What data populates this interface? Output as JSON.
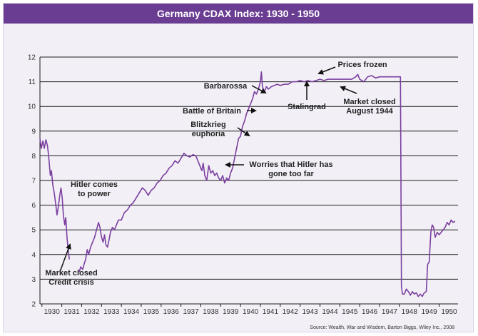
{
  "chart_data": {
    "type": "line",
    "title": "Germany CDAX Index: 1930 - 1950",
    "xlabel": "",
    "ylabel": "",
    "xlim": [
      1929.9,
      1950.95
    ],
    "ylim": [
      2,
      12
    ],
    "yticks": [
      2,
      3,
      4,
      5,
      6,
      7,
      8,
      9,
      10,
      11,
      12
    ],
    "xticks": [
      "1930",
      "1931",
      "1932",
      "1933",
      "1934",
      "1935",
      "1936",
      "1937",
      "1938",
      "1939",
      "1940",
      "1941",
      "1942",
      "1943",
      "1944",
      "1945",
      "1946",
      "1947",
      "1948",
      "1949",
      "1950"
    ],
    "grid": "horizontal",
    "color": "#7b3fa0",
    "series": [
      {
        "segments": [
          [
            [
              1929.9,
              8.7
            ],
            [
              1929.97,
              8.3
            ],
            [
              1930.05,
              8.6
            ],
            [
              1930.12,
              8.3
            ],
            [
              1930.2,
              8.65
            ],
            [
              1930.28,
              8.4
            ],
            [
              1930.35,
              7.9
            ],
            [
              1930.42,
              7.2
            ],
            [
              1930.48,
              7.4
            ],
            [
              1930.55,
              6.8
            ],
            [
              1930.62,
              6.5
            ],
            [
              1930.7,
              6.0
            ],
            [
              1930.76,
              5.6
            ],
            [
              1930.82,
              5.9
            ],
            [
              1930.9,
              6.4
            ],
            [
              1930.96,
              6.7
            ],
            [
              1931.02,
              6.3
            ],
            [
              1931.08,
              5.6
            ],
            [
              1931.15,
              5.2
            ],
            [
              1931.2,
              5.5
            ],
            [
              1931.26,
              4.7
            ],
            [
              1931.32,
              4.2
            ],
            [
              1931.38,
              3.8
            ]
          ],
          [
            [
              1931.88,
              3.3
            ],
            [
              1931.95,
              3.5
            ],
            [
              1932.05,
              3.4
            ],
            [
              1932.12,
              3.6
            ],
            [
              1932.2,
              3.8
            ],
            [
              1932.28,
              4.2
            ],
            [
              1932.35,
              4.0
            ],
            [
              1932.45,
              4.3
            ],
            [
              1932.55,
              4.5
            ],
            [
              1932.65,
              4.7
            ],
            [
              1932.75,
              5.0
            ],
            [
              1932.85,
              5.3
            ],
            [
              1932.92,
              5.1
            ],
            [
              1933.0,
              4.7
            ],
            [
              1933.08,
              4.5
            ],
            [
              1933.15,
              4.8
            ],
            [
              1933.22,
              4.4
            ],
            [
              1933.3,
              4.3
            ],
            [
              1933.38,
              4.6
            ],
            [
              1933.45,
              4.9
            ],
            [
              1933.55,
              5.1
            ],
            [
              1933.65,
              5.0
            ],
            [
              1933.75,
              5.2
            ],
            [
              1933.85,
              5.4
            ],
            [
              1934.0,
              5.4
            ],
            [
              1934.15,
              5.7
            ],
            [
              1934.3,
              5.8
            ],
            [
              1934.45,
              6.0
            ],
            [
              1934.6,
              6.1
            ],
            [
              1934.75,
              6.3
            ],
            [
              1934.9,
              6.5
            ],
            [
              1935.05,
              6.7
            ],
            [
              1935.2,
              6.6
            ],
            [
              1935.35,
              6.4
            ],
            [
              1935.5,
              6.6
            ],
            [
              1935.65,
              6.7
            ],
            [
              1935.8,
              6.9
            ],
            [
              1935.95,
              7.0
            ],
            [
              1936.1,
              7.2
            ],
            [
              1936.25,
              7.3
            ],
            [
              1936.4,
              7.5
            ],
            [
              1936.55,
              7.6
            ],
            [
              1936.7,
              7.8
            ],
            [
              1936.85,
              7.7
            ],
            [
              1937.0,
              7.9
            ],
            [
              1937.15,
              8.1
            ],
            [
              1937.3,
              8.0
            ],
            [
              1937.45,
              7.95
            ],
            [
              1937.6,
              8.05
            ],
            [
              1937.75,
              8.0
            ],
            [
              1937.85,
              7.8
            ],
            [
              1937.95,
              7.6
            ],
            [
              1938.05,
              7.4
            ],
            [
              1938.12,
              7.7
            ],
            [
              1938.2,
              7.2
            ],
            [
              1938.3,
              7.0
            ],
            [
              1938.4,
              7.6
            ],
            [
              1938.5,
              7.3
            ],
            [
              1938.6,
              7.4
            ],
            [
              1938.7,
              7.2
            ],
            [
              1938.8,
              7.3
            ],
            [
              1938.9,
              7.1
            ],
            [
              1939.0,
              7.0
            ],
            [
              1939.1,
              7.2
            ],
            [
              1939.2,
              6.9
            ],
            [
              1939.3,
              7.1
            ],
            [
              1939.4,
              7.0
            ],
            [
              1939.5,
              7.3
            ],
            [
              1939.6,
              7.5
            ],
            [
              1939.7,
              7.9
            ],
            [
              1939.8,
              8.3
            ],
            [
              1939.9,
              8.7
            ],
            [
              1940.0,
              8.8
            ],
            [
              1940.1,
              9.2
            ],
            [
              1940.2,
              9.4
            ],
            [
              1940.3,
              9.7
            ],
            [
              1940.4,
              9.9
            ],
            [
              1940.5,
              10.1
            ],
            [
              1940.6,
              10.3
            ],
            [
              1940.7,
              10.6
            ],
            [
              1940.8,
              10.5
            ],
            [
              1940.9,
              10.7
            ],
            [
              1941.0,
              11.0
            ],
            [
              1941.05,
              11.4
            ],
            [
              1941.1,
              10.8
            ],
            [
              1941.2,
              10.6
            ],
            [
              1941.3,
              10.8
            ],
            [
              1941.4,
              10.7
            ],
            [
              1941.55,
              10.8
            ],
            [
              1941.7,
              10.85
            ],
            [
              1941.85,
              10.9
            ],
            [
              1942.0,
              10.85
            ],
            [
              1942.2,
              10.9
            ],
            [
              1942.4,
              10.9
            ],
            [
              1942.6,
              11.0
            ],
            [
              1942.8,
              11.0
            ],
            [
              1943.0,
              11.05
            ],
            [
              1943.2,
              11.0
            ],
            [
              1943.4,
              11.05
            ],
            [
              1943.6,
              11.0
            ],
            [
              1943.8,
              11.05
            ],
            [
              1944.0,
              11.1
            ],
            [
              1944.2,
              11.05
            ],
            [
              1944.4,
              11.1
            ],
            [
              1944.6,
              11.1
            ],
            [
              1944.8,
              11.1
            ],
            [
              1945.0,
              11.1
            ],
            [
              1945.2,
              11.1
            ],
            [
              1945.4,
              11.1
            ],
            [
              1945.6,
              11.1
            ],
            [
              1945.8,
              11.2
            ],
            [
              1945.9,
              11.3
            ],
            [
              1946.0,
              11.1
            ],
            [
              1946.2,
              11.0
            ],
            [
              1946.4,
              11.2
            ],
            [
              1946.6,
              11.25
            ],
            [
              1946.8,
              11.15
            ],
            [
              1947.0,
              11.2
            ],
            [
              1947.3,
              11.2
            ],
            [
              1947.6,
              11.2
            ],
            [
              1947.9,
              11.2
            ],
            [
              1948.05,
              11.2
            ],
            [
              1948.1,
              2.7
            ],
            [
              1948.15,
              2.4
            ],
            [
              1948.25,
              2.4
            ],
            [
              1948.35,
              2.6
            ],
            [
              1948.45,
              2.5
            ],
            [
              1948.55,
              2.35
            ],
            [
              1948.65,
              2.5
            ],
            [
              1948.75,
              2.4
            ],
            [
              1948.85,
              2.45
            ],
            [
              1948.95,
              2.3
            ],
            [
              1949.05,
              2.4
            ],
            [
              1949.15,
              2.3
            ],
            [
              1949.25,
              2.45
            ],
            [
              1949.35,
              2.5
            ],
            [
              1949.42,
              3.6
            ],
            [
              1949.5,
              3.7
            ],
            [
              1949.58,
              4.9
            ],
            [
              1949.65,
              5.2
            ],
            [
              1949.72,
              5.1
            ],
            [
              1949.8,
              4.7
            ],
            [
              1949.9,
              4.9
            ],
            [
              1950.0,
              4.8
            ],
            [
              1950.1,
              4.9
            ],
            [
              1950.2,
              5.0
            ],
            [
              1950.3,
              5.1
            ],
            [
              1950.4,
              5.3
            ],
            [
              1950.5,
              5.2
            ],
            [
              1950.6,
              5.4
            ],
            [
              1950.7,
              5.3
            ],
            [
              1950.8,
              5.35
            ]
          ]
        ]
      }
    ],
    "annotations": [
      {
        "text": [
          "Hitler comes",
          "to power"
        ]
      },
      {
        "text": [
          "Market closed",
          "Credit crisis"
        ]
      },
      {
        "text": [
          "Barbarossa"
        ]
      },
      {
        "text": [
          "Battle of Britain"
        ]
      },
      {
        "text": [
          "Blitzkrieg",
          "euphoria"
        ]
      },
      {
        "text": [
          "Worries that Hitler has",
          "gone too far"
        ]
      },
      {
        "text": [
          "Stalingrad"
        ]
      },
      {
        "text": [
          "Prices frozen"
        ]
      },
      {
        "text": [
          "Market closed",
          "August 1944"
        ]
      }
    ],
    "source": "Source: Wealth, War and Wisdom, Barton Biggs, Wiley Inc., 2008"
  }
}
